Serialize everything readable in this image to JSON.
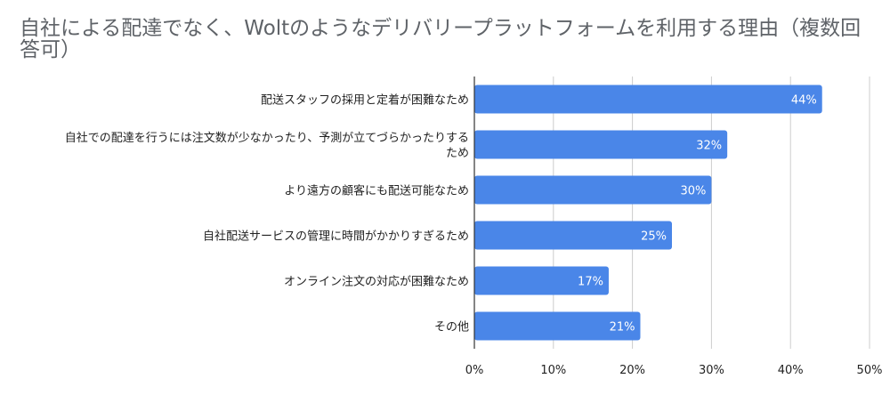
{
  "chart_data": {
    "type": "bar",
    "orientation": "horizontal",
    "title": "自社による配達でなく、Woltのようなデリバリープラットフォームを利用する理由（複数回答可）",
    "categories": [
      [
        "配送スタッフの採用と定着が困難なため"
      ],
      [
        "自社での配達を行うには注文数が少なかったり、予測が立てづらかったりする",
        "ため"
      ],
      [
        "より遠方の顧客にも配送可能なため"
      ],
      [
        "自社配送サービスの管理に時間がかかりすぎるため"
      ],
      [
        "オンライン注文の対応が困難なため"
      ],
      [
        "その他"
      ]
    ],
    "values": [
      44,
      32,
      30,
      25,
      17,
      21
    ],
    "value_labels": [
      "44%",
      "32%",
      "30%",
      "25%",
      "17%",
      "21%"
    ],
    "xlim": [
      0,
      50
    ],
    "xticks": [
      0,
      10,
      20,
      30,
      40,
      50
    ],
    "xtick_labels": [
      "0%",
      "10%",
      "20%",
      "30%",
      "40%",
      "50%"
    ],
    "xlabel": "",
    "ylabel": "",
    "grid": true,
    "colors": {
      "bar": "#4a86e8",
      "grid": "#cccccc",
      "axis": "#333333",
      "title": "#5f6368"
    }
  }
}
